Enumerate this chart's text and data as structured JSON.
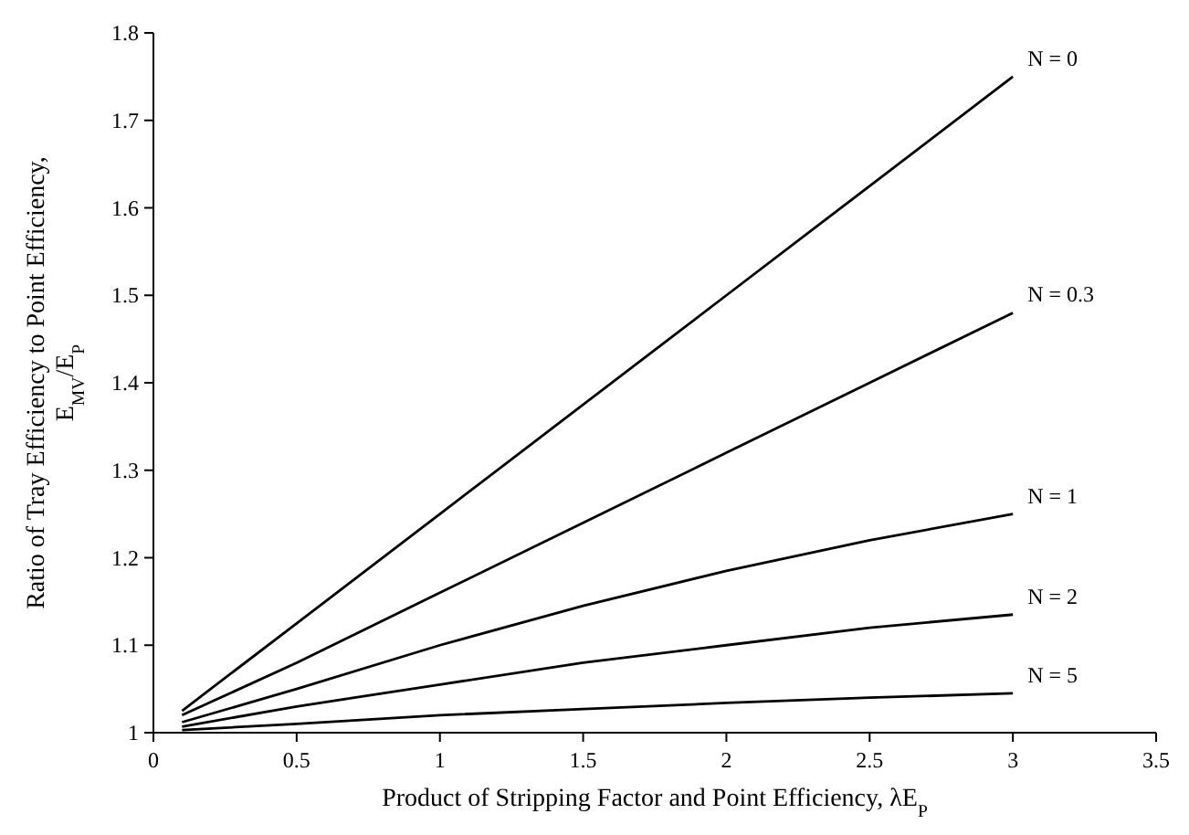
{
  "chart_data": {
    "type": "line",
    "xlabel": "Product of Stripping Factor and Point Efficiency, λE$_{P}$",
    "ylabel": "Ratio of Tray Efficiency to Point Efficiency, E$_{MV}$/E$_{P}$",
    "x": [
      0.1,
      0.5,
      1,
      1.5,
      2,
      2.5,
      3
    ],
    "series": [
      {
        "name": "N = 0",
        "color": "#000000",
        "values": [
          1.025,
          1.125,
          1.25,
          1.375,
          1.5,
          1.625,
          1.75
        ]
      },
      {
        "name": "N = 0.3",
        "color": "#000000",
        "values": [
          1.02,
          1.08,
          1.16,
          1.24,
          1.32,
          1.4,
          1.48
        ]
      },
      {
        "name": "N = 1",
        "color": "#000000",
        "values": [
          1.012,
          1.05,
          1.1,
          1.145,
          1.185,
          1.22,
          1.25
        ]
      },
      {
        "name": "N = 2",
        "color": "#000000",
        "values": [
          1.007,
          1.03,
          1.055,
          1.08,
          1.1,
          1.12,
          1.135
        ]
      },
      {
        "name": "N = 5",
        "color": "#000000",
        "values": [
          1.003,
          1.01,
          1.02,
          1.027,
          1.034,
          1.04,
          1.045
        ]
      }
    ],
    "xlim": [
      0,
      3.5
    ],
    "xticks": [
      0,
      0.5,
      1,
      1.5,
      2,
      2.5,
      3,
      3.5
    ],
    "ylim": [
      1,
      1.8
    ],
    "yticks": [
      1,
      1.1,
      1.2,
      1.3,
      1.4,
      1.5,
      1.6,
      1.7,
      1.8
    ],
    "grid": false,
    "marker": "none",
    "line_style": "solid"
  }
}
